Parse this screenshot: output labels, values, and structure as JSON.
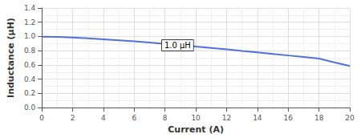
{
  "chart_data": {
    "type": "line",
    "xlabel": "Current (A)",
    "ylabel": "Inductance (μH)",
    "x": [
      0,
      1,
      2,
      3,
      4,
      5,
      6,
      7,
      8,
      9,
      10,
      11,
      12,
      13,
      14,
      15,
      16,
      17,
      18,
      19,
      20
    ],
    "values": [
      0.998,
      0.993,
      0.985,
      0.974,
      0.961,
      0.947,
      0.931,
      0.914,
      0.896,
      0.877,
      0.858,
      0.838,
      0.818,
      0.797,
      0.776,
      0.755,
      0.733,
      0.712,
      0.69,
      0.635,
      0.585
    ],
    "xlim": [
      0,
      20
    ],
    "ylim": [
      0,
      1.4
    ],
    "xticks": [
      0,
      2,
      4,
      6,
      8,
      10,
      12,
      14,
      16,
      18,
      20
    ],
    "yticks": [
      {
        "value": 0,
        "label": "0.0"
      },
      0.2,
      0.4,
      0.6,
      0.8,
      {
        "value": 1,
        "label": "1.0"
      },
      1.2,
      1.4
    ],
    "annotations": [
      {
        "text": "1.0 μH",
        "x": 7.8,
        "y": 0.875
      }
    ],
    "grid": true
  }
}
